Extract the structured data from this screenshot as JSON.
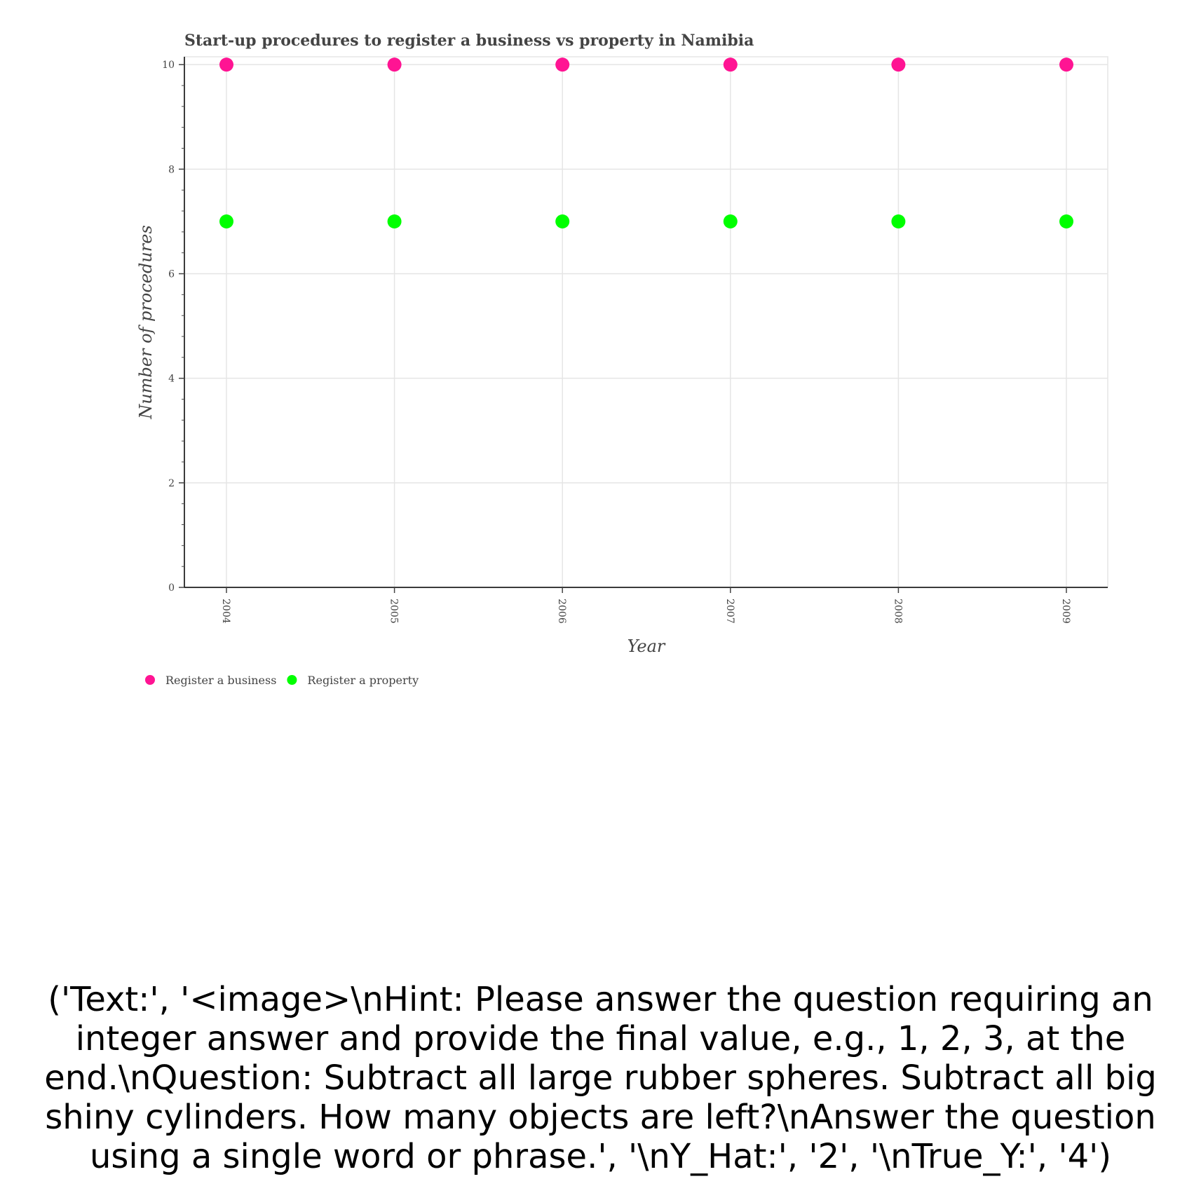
{
  "chart_data": {
    "type": "scatter",
    "title": "Start-up procedures to register a business vs property in Namibia",
    "xlabel": "Year",
    "ylabel": "Number of procedures",
    "categories": [
      "2004",
      "2005",
      "2006",
      "2007",
      "2008",
      "2009"
    ],
    "ylim": [
      0,
      10.15
    ],
    "yticks": [
      0,
      2,
      4,
      6,
      8,
      10
    ],
    "grid": true,
    "legend_position": "bottom-left",
    "series": [
      {
        "name": "Register a business",
        "color": "#ff1493",
        "values": [
          10,
          10,
          10,
          10,
          10,
          10
        ]
      },
      {
        "name": "Register a property",
        "color": "#00ff00",
        "values": [
          7,
          7,
          7,
          7,
          7,
          7
        ]
      }
    ]
  },
  "caption": {
    "text": "('Text:', '<image>\\nHint: Please answer the question requiring an integer answer and provide the final value, e.g., 1, 2, 3, at the end.\\nQuestion: Subtract all large rubber spheres. Subtract all big shiny cylinders. How many objects are left?\\nAnswer the question using a single word or phrase.', '\\nY_Hat:', '2', '\\nTrue_Y:', '4')"
  }
}
